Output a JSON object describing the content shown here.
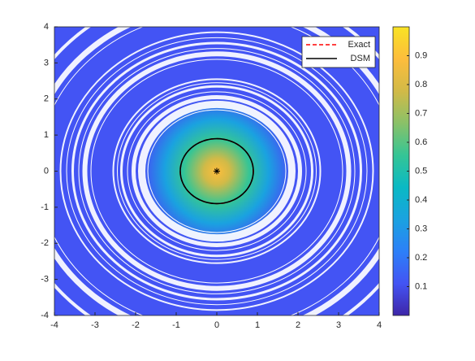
{
  "chart_data": {
    "type": "image",
    "xlim": [
      -4,
      4
    ],
    "ylim": [
      -4,
      4
    ],
    "xticks": [
      -4,
      -3,
      -2,
      -1,
      0,
      1,
      2,
      3,
      4
    ],
    "yticks": [
      -4,
      -3,
      -2,
      -1,
      0,
      1,
      2,
      3,
      4
    ],
    "clim": [
      0,
      1
    ],
    "cticks": [
      0.1,
      0.2,
      0.3,
      0.4,
      0.5,
      0.6,
      0.7,
      0.8,
      0.9
    ],
    "colormap": [
      "#3e26a8",
      "#4354f4",
      "#2c80f8",
      "#1aa2e0",
      "#0ab9c4",
      "#35c595",
      "#8ac168",
      "#d2ba47",
      "#fdbd3c",
      "#f9e324"
    ],
    "center": [
      0,
      0
    ],
    "series": [
      {
        "name": "Exact",
        "color": "#ff0000",
        "dashed": true,
        "radius": 0.9
      },
      {
        "name": "DSM",
        "color": "#000000",
        "dashed": false,
        "radius": 0.9
      }
    ],
    "legend": "top-right"
  }
}
